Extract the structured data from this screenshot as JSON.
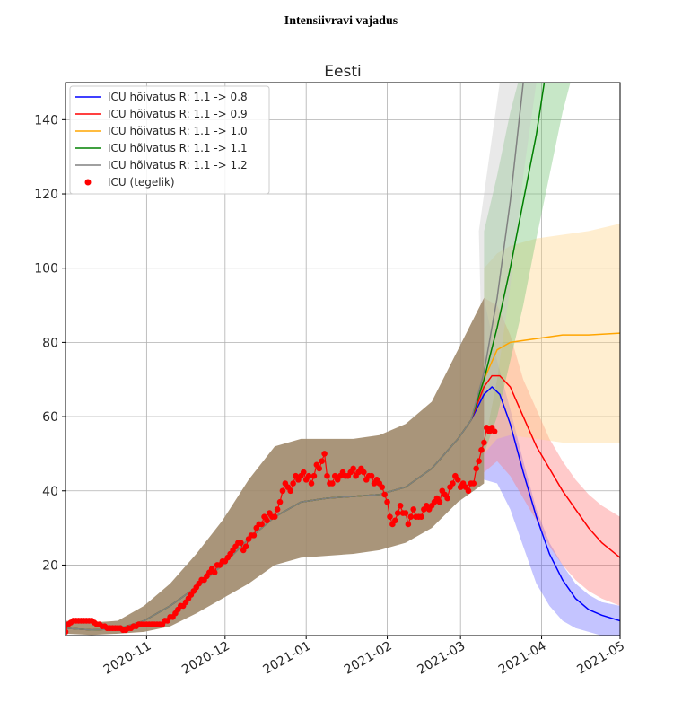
{
  "page_title": "Intensiivravi vajadus",
  "chart_data": {
    "type": "line",
    "title": "Eesti",
    "xlabel": "",
    "ylabel": "",
    "x_start": "2020-10-01",
    "x_end": "2021-05-01",
    "ylim": [
      1,
      150
    ],
    "yticks": [
      20,
      40,
      60,
      80,
      100,
      120,
      140
    ],
    "xticks": [
      {
        "date": "2020-11-01",
        "label": "2020-11"
      },
      {
        "date": "2020-12-01",
        "label": "2020-12"
      },
      {
        "date": "2021-01-01",
        "label": "2021-01"
      },
      {
        "date": "2021-02-01",
        "label": "2021-02"
      },
      {
        "date": "2021-03-01",
        "label": "2021-03"
      },
      {
        "date": "2021-04-01",
        "label": "2021-04"
      },
      {
        "date": "2021-05-01",
        "label": "2021-05"
      }
    ],
    "grid": true,
    "legend_position": "top-left",
    "common_projection": [
      [
        0,
        3
      ],
      [
        10,
        2.5
      ],
      [
        20,
        2.8
      ],
      [
        30,
        5
      ],
      [
        40,
        9
      ],
      [
        50,
        14
      ],
      [
        60,
        20
      ],
      [
        70,
        27
      ],
      [
        80,
        33
      ],
      [
        90,
        37
      ],
      [
        100,
        38
      ],
      [
        110,
        38.5
      ],
      [
        120,
        39
      ],
      [
        130,
        41
      ],
      [
        140,
        46
      ],
      [
        150,
        54
      ],
      [
        155,
        59
      ]
    ],
    "common_band_upper": [
      [
        0,
        5
      ],
      [
        10,
        4.5
      ],
      [
        20,
        5
      ],
      [
        30,
        9
      ],
      [
        40,
        15
      ],
      [
        50,
        23
      ],
      [
        60,
        32
      ],
      [
        70,
        43
      ],
      [
        80,
        52
      ],
      [
        90,
        54
      ],
      [
        100,
        54
      ],
      [
        110,
        54
      ],
      [
        120,
        55
      ],
      [
        130,
        58
      ],
      [
        140,
        64
      ],
      [
        150,
        78
      ],
      [
        160,
        92
      ]
    ],
    "common_band_lower": [
      [
        0,
        1.5
      ],
      [
        10,
        1.2
      ],
      [
        20,
        1.5
      ],
      [
        30,
        2
      ],
      [
        40,
        3.5
      ],
      [
        50,
        7
      ],
      [
        60,
        11
      ],
      [
        70,
        15
      ],
      [
        80,
        20
      ],
      [
        90,
        22
      ],
      [
        100,
        22.5
      ],
      [
        110,
        23
      ],
      [
        120,
        24
      ],
      [
        130,
        26
      ],
      [
        140,
        30
      ],
      [
        150,
        37
      ],
      [
        160,
        42
      ]
    ],
    "series": [
      {
        "name": "ICU hõivatus  R: 1.1 -> 0.8",
        "color": "#0000ff",
        "band_color": "#6b6bff",
        "values": [
          [
            155,
            59
          ],
          [
            160,
            66
          ],
          [
            163,
            68
          ],
          [
            166,
            66
          ],
          [
            170,
            58
          ],
          [
            175,
            45
          ],
          [
            180,
            33
          ],
          [
            185,
            23
          ],
          [
            190,
            16
          ],
          [
            195,
            11
          ],
          [
            200,
            8
          ],
          [
            205,
            6.5
          ],
          [
            212,
            5
          ]
        ],
        "band_upper": [
          [
            160,
            92
          ],
          [
            165,
            75
          ],
          [
            170,
            62
          ],
          [
            175,
            48
          ],
          [
            180,
            35
          ],
          [
            185,
            26
          ],
          [
            190,
            20
          ],
          [
            195,
            15
          ],
          [
            200,
            12
          ],
          [
            205,
            10
          ],
          [
            212,
            9
          ]
        ],
        "band_lower": [
          [
            160,
            43
          ],
          [
            165,
            42
          ],
          [
            170,
            35
          ],
          [
            175,
            25
          ],
          [
            180,
            15
          ],
          [
            185,
            9
          ],
          [
            190,
            5
          ],
          [
            195,
            3
          ],
          [
            200,
            2
          ],
          [
            205,
            1
          ],
          [
            212,
            0.5
          ]
        ]
      },
      {
        "name": "ICU hõivatus  R: 1.1 -> 0.9",
        "color": "#ff0000",
        "band_color": "#ff7a7a",
        "values": [
          [
            155,
            59
          ],
          [
            160,
            68
          ],
          [
            163,
            71
          ],
          [
            166,
            71
          ],
          [
            170,
            68
          ],
          [
            175,
            60
          ],
          [
            180,
            52
          ],
          [
            185,
            46
          ],
          [
            190,
            40
          ],
          [
            195,
            35
          ],
          [
            200,
            30
          ],
          [
            205,
            26
          ],
          [
            212,
            22
          ]
        ],
        "band_upper": [
          [
            160,
            92
          ],
          [
            165,
            90
          ],
          [
            170,
            82
          ],
          [
            175,
            70
          ],
          [
            180,
            62
          ],
          [
            185,
            54
          ],
          [
            190,
            48
          ],
          [
            195,
            43
          ],
          [
            200,
            39
          ],
          [
            205,
            36
          ],
          [
            212,
            33
          ]
        ],
        "band_lower": [
          [
            160,
            45
          ],
          [
            165,
            48
          ],
          [
            170,
            44
          ],
          [
            175,
            38
          ],
          [
            180,
            32
          ],
          [
            185,
            25
          ],
          [
            190,
            20
          ],
          [
            195,
            16
          ],
          [
            200,
            13
          ],
          [
            205,
            11
          ],
          [
            212,
            9
          ]
        ]
      },
      {
        "name": "ICU hõivatus  R: 1.1 -> 1.0",
        "color": "#ffa500",
        "band_color": "#ffd58a",
        "values": [
          [
            155,
            59
          ],
          [
            160,
            70
          ],
          [
            165,
            78
          ],
          [
            170,
            80
          ],
          [
            180,
            81
          ],
          [
            190,
            82
          ],
          [
            200,
            82
          ],
          [
            212,
            82.5
          ]
        ],
        "band_upper": [
          [
            160,
            100
          ],
          [
            165,
            104
          ],
          [
            170,
            106
          ],
          [
            180,
            108
          ],
          [
            190,
            109
          ],
          [
            200,
            110
          ],
          [
            212,
            112
          ]
        ],
        "band_lower": [
          [
            160,
            50
          ],
          [
            165,
            54
          ],
          [
            170,
            55
          ],
          [
            180,
            54
          ],
          [
            190,
            53
          ],
          [
            200,
            53
          ],
          [
            212,
            53
          ]
        ]
      },
      {
        "name": "ICU hõivatus  R: 1.1 -> 1.1",
        "color": "#008000",
        "band_color": "#74c474",
        "values": [
          [
            155,
            59
          ],
          [
            160,
            70
          ],
          [
            165,
            84
          ],
          [
            170,
            100
          ],
          [
            175,
            118
          ],
          [
            180,
            136
          ],
          [
            183,
            150
          ]
        ],
        "band_upper": [
          [
            160,
            110
          ],
          [
            165,
            125
          ],
          [
            170,
            142
          ],
          [
            173,
            150
          ]
        ],
        "band_lower": [
          [
            160,
            50
          ],
          [
            165,
            60
          ],
          [
            170,
            75
          ],
          [
            175,
            90
          ],
          [
            180,
            108
          ],
          [
            185,
            125
          ],
          [
            190,
            142
          ],
          [
            193,
            150
          ]
        ]
      },
      {
        "name": "ICU hõivatus  R: 1.1 -> 1.2",
        "color": "#808080",
        "band_color": "#c8c8c8",
        "values": [
          [
            155,
            59
          ],
          [
            160,
            72
          ],
          [
            165,
            92
          ],
          [
            170,
            118
          ],
          [
            175,
            150
          ]
        ],
        "band_upper": [
          [
            158,
            110
          ],
          [
            162,
            130
          ],
          [
            166,
            150
          ]
        ],
        "band_lower": [
          [
            160,
            52
          ],
          [
            165,
            70
          ],
          [
            170,
            95
          ],
          [
            175,
            125
          ],
          [
            180,
            150
          ]
        ]
      }
    ],
    "actual": {
      "name": "ICU (tegelik)",
      "color": "#ff0000",
      "values": [
        2,
        4,
        4.5,
        5,
        5,
        5,
        5,
        5,
        5,
        5,
        5,
        4.5,
        4,
        4,
        3.5,
        3.5,
        3,
        3,
        3,
        3,
        3,
        3,
        2.5,
        2.5,
        3,
        3,
        3.5,
        3.5,
        4,
        4,
        4,
        4,
        4,
        4,
        4,
        4,
        4,
        4,
        5,
        5,
        6,
        6,
        7,
        8,
        9,
        9,
        10,
        11,
        12,
        13,
        14,
        15,
        16,
        16,
        17,
        18,
        19,
        18,
        20,
        20,
        21,
        21,
        22,
        23,
        24,
        25,
        26,
        26,
        24,
        25,
        27,
        28,
        28,
        30,
        31,
        31,
        33,
        32,
        34,
        33,
        33,
        35,
        37,
        40,
        42,
        41,
        40,
        42,
        44,
        43,
        44,
        45,
        43,
        44,
        42,
        44,
        47,
        46,
        48,
        50,
        44,
        42,
        42,
        44,
        43,
        44,
        45,
        44,
        44,
        45,
        46,
        44,
        45,
        46,
        45,
        43,
        44,
        44,
        42,
        43,
        42,
        41,
        39,
        37,
        33,
        31,
        32,
        34,
        36,
        34,
        34,
        31,
        33,
        35,
        33,
        33,
        33,
        35,
        36,
        35,
        36,
        37,
        38,
        37,
        40,
        39,
        38,
        41,
        42,
        44,
        43,
        41,
        42,
        41,
        40,
        42,
        42,
        46,
        48,
        51,
        53,
        57,
        56,
        57,
        56
      ]
    }
  }
}
